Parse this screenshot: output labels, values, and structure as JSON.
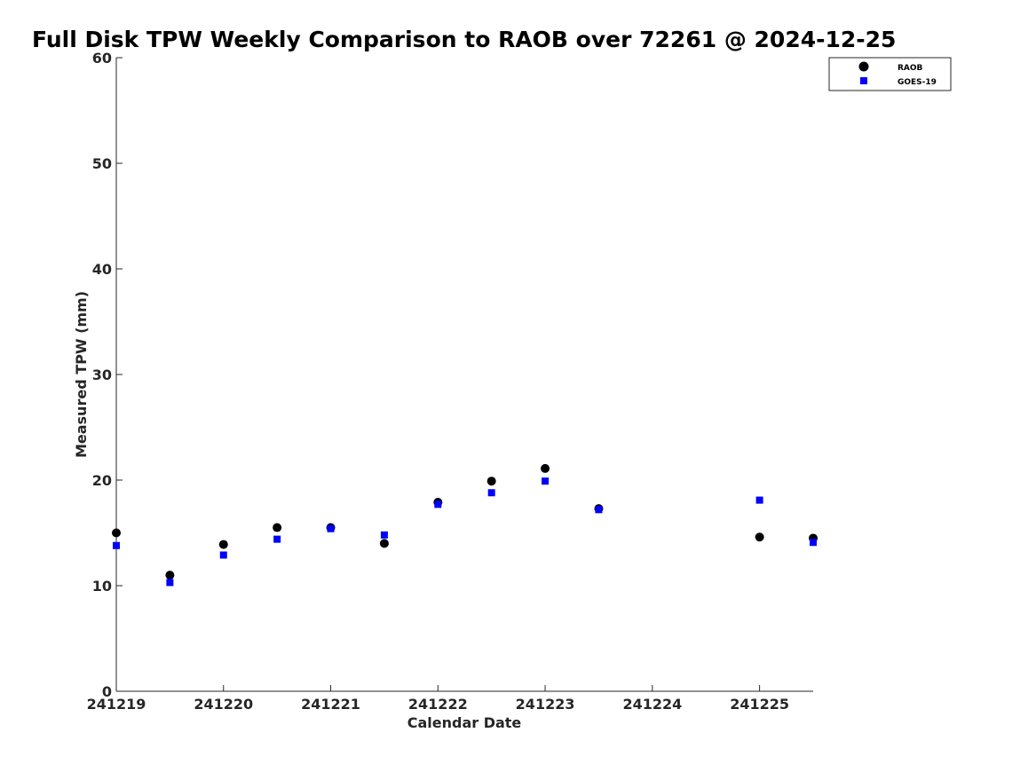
{
  "chart_data": {
    "type": "scatter",
    "title": "Full Disk TPW Weekly Comparison to RAOB over 72261 @ 2024-12-25",
    "xlabel": "Calendar Date",
    "ylabel": "Measured TPW (mm)",
    "xlim": [
      "2024-12-19 00:00",
      "2024-12-25 12:00"
    ],
    "ylim": [
      0,
      60
    ],
    "x_ticks": [
      "2024-12-19",
      "2024-12-20",
      "2024-12-21",
      "2024-12-22",
      "2024-12-23",
      "2024-12-24",
      "2024-12-25"
    ],
    "x_tick_labels": [
      "241219",
      "241220",
      "241221",
      "241222",
      "241223",
      "241224",
      "241225"
    ],
    "y_ticks": [
      0,
      10,
      20,
      30,
      40,
      50,
      60
    ],
    "y_tick_labels": [
      "0",
      "10",
      "20",
      "30",
      "40",
      "50",
      "60"
    ],
    "grid": false,
    "legend_position": "top-right",
    "series": [
      {
        "name": "RAOB",
        "marker": "circle",
        "color": "#000000",
        "points": [
          {
            "x": "2024-12-19 00:00",
            "y": 15.0
          },
          {
            "x": "2024-12-19 12:00",
            "y": 11.0
          },
          {
            "x": "2024-12-20 00:00",
            "y": 13.9
          },
          {
            "x": "2024-12-20 12:00",
            "y": 15.5
          },
          {
            "x": "2024-12-21 00:00",
            "y": 15.5
          },
          {
            "x": "2024-12-21 12:00",
            "y": 14.0
          },
          {
            "x": "2024-12-22 00:00",
            "y": 17.9
          },
          {
            "x": "2024-12-22 12:00",
            "y": 19.9
          },
          {
            "x": "2024-12-23 00:00",
            "y": 21.1
          },
          {
            "x": "2024-12-23 12:00",
            "y": 17.3
          },
          {
            "x": "2024-12-25 00:00",
            "y": 14.6
          },
          {
            "x": "2024-12-25 12:00",
            "y": 14.5
          }
        ]
      },
      {
        "name": "GOES-19",
        "marker": "square",
        "color": "#0000ff",
        "points": [
          {
            "x": "2024-12-19 00:00",
            "y": 13.8
          },
          {
            "x": "2024-12-19 12:00",
            "y": 10.3
          },
          {
            "x": "2024-12-20 00:00",
            "y": 12.9
          },
          {
            "x": "2024-12-20 12:00",
            "y": 14.4
          },
          {
            "x": "2024-12-21 00:00",
            "y": 15.4
          },
          {
            "x": "2024-12-21 12:00",
            "y": 14.8
          },
          {
            "x": "2024-12-22 00:00",
            "y": 17.7
          },
          {
            "x": "2024-12-22 12:00",
            "y": 18.8
          },
          {
            "x": "2024-12-23 00:00",
            "y": 19.9
          },
          {
            "x": "2024-12-23 12:00",
            "y": 17.2
          },
          {
            "x": "2024-12-25 00:00",
            "y": 18.1
          },
          {
            "x": "2024-12-25 12:00",
            "y": 14.1
          }
        ]
      }
    ]
  }
}
